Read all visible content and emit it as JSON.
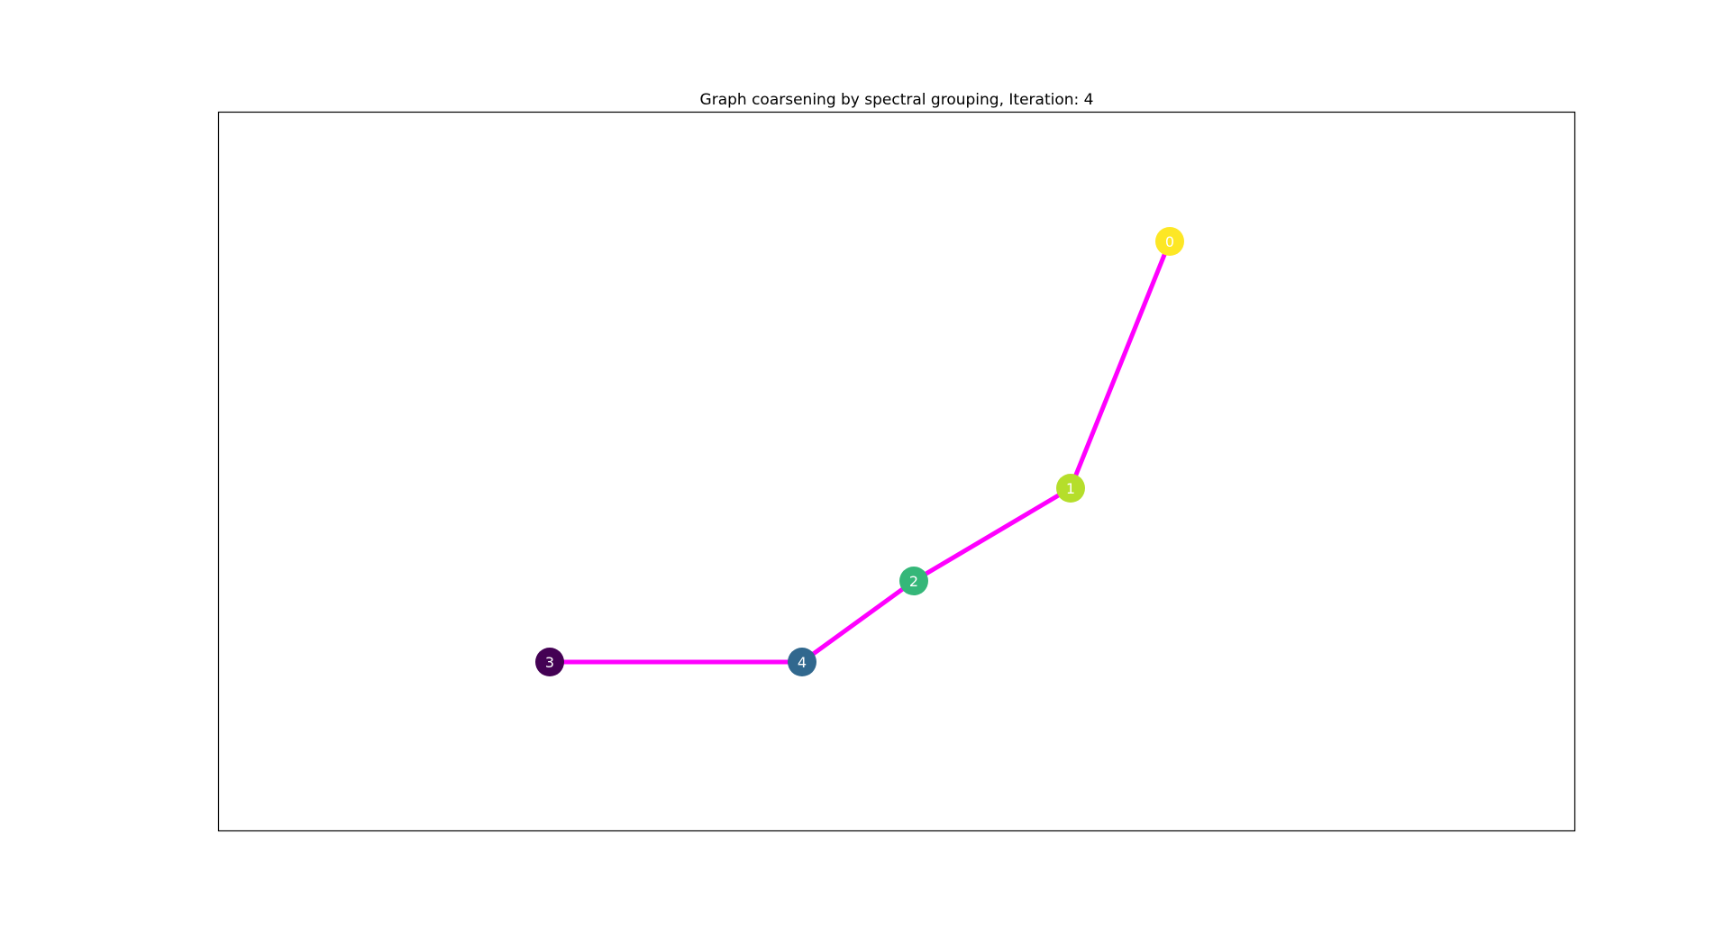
{
  "title": "Graph coarsening by spectral grouping, Iteration: 4",
  "edge_color": "#ff00ff",
  "label_color": "#ffffff",
  "frame_color": "#000000",
  "nodes": [
    {
      "id": "0",
      "label": "0",
      "color": "#fde725"
    },
    {
      "id": "1",
      "label": "1",
      "color": "#b5de2b"
    },
    {
      "id": "2",
      "label": "2",
      "color": "#35b779"
    },
    {
      "id": "3",
      "label": "3",
      "color": "#440154"
    },
    {
      "id": "4",
      "label": "4",
      "color": "#31688e"
    }
  ],
  "edges": [
    {
      "source": "0",
      "target": "1"
    },
    {
      "source": "1",
      "target": "2"
    },
    {
      "source": "2",
      "target": "4"
    },
    {
      "source": "4",
      "target": "3"
    }
  ]
}
